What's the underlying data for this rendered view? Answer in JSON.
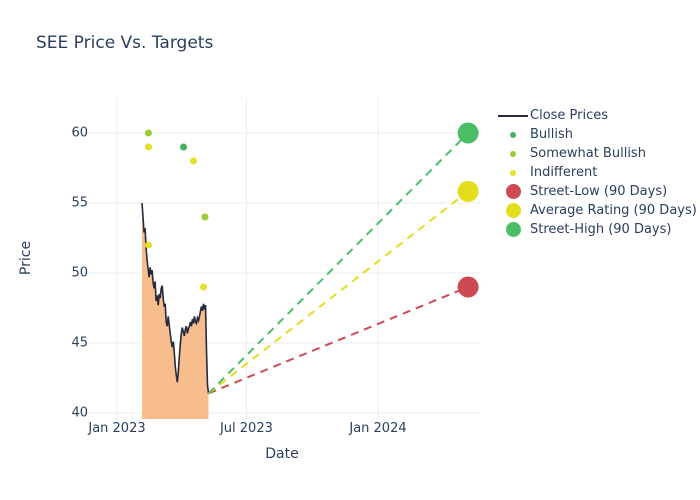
{
  "title": "SEE Price Vs. Targets",
  "axes": {
    "x_label": "Date",
    "y_label": "Price",
    "x_ticks": [
      {
        "label": "Jan 2023",
        "date": "2023-01-01"
      },
      {
        "label": "Jul 2023",
        "date": "2023-07-01"
      },
      {
        "label": "Jan 2024",
        "date": "2024-01-01"
      }
    ],
    "y_ticks": [
      40,
      45,
      50,
      55,
      60
    ]
  },
  "legend": {
    "items": [
      {
        "label": "Close Prices",
        "marker": "line",
        "color": "#262a3d"
      },
      {
        "label": "Bullish",
        "marker": "dot",
        "color": "#43b05c"
      },
      {
        "label": "Somewhat Bullish",
        "marker": "dot",
        "color": "#9ccc33"
      },
      {
        "label": "Indifferent",
        "marker": "dot",
        "color": "#e5e02a"
      },
      {
        "label": "Street-Low (90 Days)",
        "marker": "circle",
        "color": "#cd4a53"
      },
      {
        "label": "Average Rating (90 Days)",
        "marker": "circle",
        "color": "#e2de1b"
      },
      {
        "label": "Street-High (90 Days)",
        "marker": "circle",
        "color": "#4dbe68"
      }
    ]
  },
  "chart_data": {
    "type": "line",
    "title": "SEE Price Vs. Targets",
    "xlabel": "Date",
    "ylabel": "Price",
    "ylim": [
      39.5,
      62.5
    ],
    "xlim": [
      "2022-11-15",
      "2024-05-28"
    ],
    "grid": true,
    "legend_position": "right",
    "line_color": "#262a3d",
    "fill_color": "#f7bd8c",
    "grid_color": "#e9eef6",
    "text_color": "#2a3f5f",
    "close_prices": {
      "name": "Close Prices",
      "start_date": "2023-02-05",
      "end_date": "2023-05-09",
      "values": [
        55.0,
        54.0,
        52.9,
        53.2,
        51.8,
        50.9,
        50.3,
        49.7,
        50.4,
        49.9,
        50.2,
        49.3,
        48.9,
        49.4,
        48.0,
        48.4,
        47.7,
        48.5,
        48.2,
        48.9,
        49.1,
        48.2,
        47.6,
        47.8,
        46.5,
        46.2,
        46.9,
        46.3,
        45.7,
        45.1,
        44.7,
        45.1,
        44.3,
        43.3,
        42.7,
        42.2,
        42.9,
        44.0,
        44.9,
        45.7,
        46.1,
        45.8,
        45.5,
        46.0,
        46.2,
        45.7,
        46.0,
        46.2,
        46.5,
        46.2,
        46.7,
        46.4,
        46.9,
        46.5,
        46.4,
        46.8,
        46.6,
        46.9,
        47.3,
        47.6,
        47.3,
        47.8,
        47.4,
        47.7,
        44.5,
        42.0,
        41.4
      ]
    },
    "ratings": [
      {
        "date": "2023-02-14",
        "price": 60,
        "rating": "Somewhat Bullish"
      },
      {
        "date": "2023-02-14",
        "price": 59,
        "rating": "Indifferent"
      },
      {
        "date": "2023-02-14",
        "price": 52,
        "rating": "Indifferent"
      },
      {
        "date": "2023-04-04",
        "price": 59,
        "rating": "Bullish"
      },
      {
        "date": "2023-04-18",
        "price": 58,
        "rating": "Indifferent"
      },
      {
        "date": "2023-05-02",
        "price": 49,
        "rating": "Indifferent"
      },
      {
        "date": "2023-05-04",
        "price": 54,
        "rating": "Somewhat Bullish"
      }
    ],
    "targets": [
      {
        "name": "Street-Low (90 Days)",
        "price": 49,
        "date": "2024-05-06"
      },
      {
        "name": "Average Rating (90 Days)",
        "price": 55.83,
        "date": "2024-05-06"
      },
      {
        "name": "Street-High (90 Days)",
        "price": 60,
        "date": "2024-05-06"
      }
    ],
    "rating_colors": {
      "Bullish": "#43b05c",
      "Somewhat Bullish": "#9ccc33",
      "Indifferent": "#e5e02a"
    },
    "target_colors": {
      "Street-Low (90 Days)": "#cd4a53",
      "Average Rating (90 Days)": "#e2de1b",
      "Street-High (90 Days)": "#4dbe68"
    }
  }
}
